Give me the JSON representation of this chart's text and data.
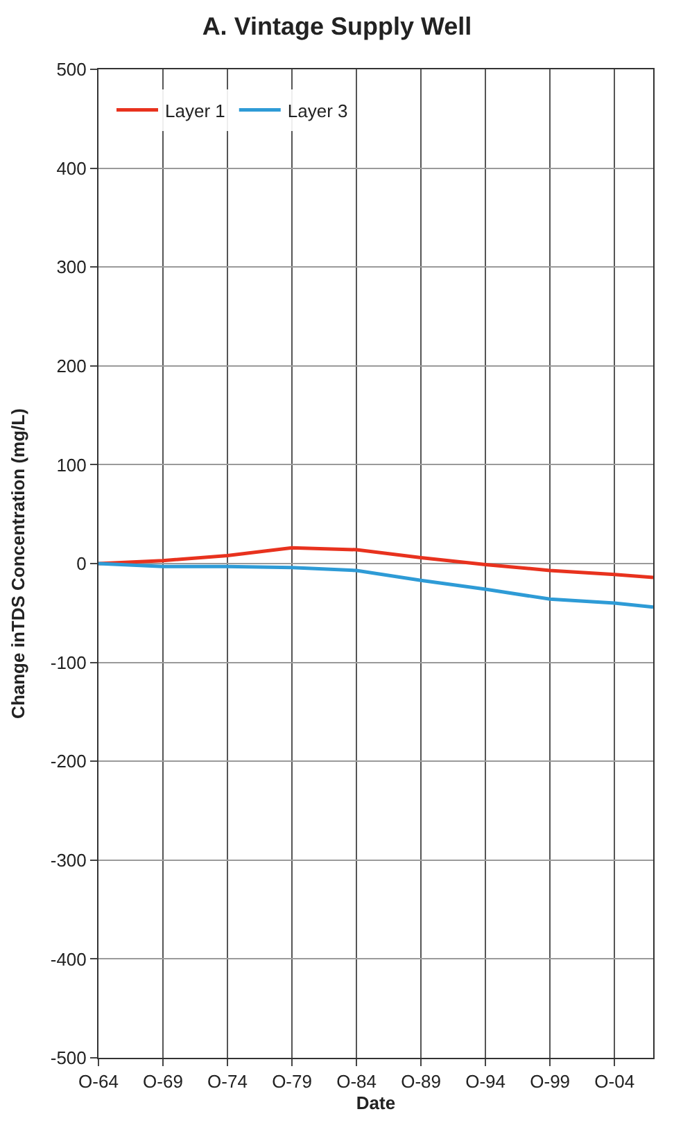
{
  "chart_data": {
    "type": "line",
    "title": "A. Vintage Supply Well",
    "xlabel": "Date",
    "ylabel": "Change inTDS Concentration (mg/L)",
    "x": [
      "1964-10",
      "1969-10",
      "1974-10",
      "1979-10",
      "1984-10",
      "1989-10",
      "1994-10",
      "1999-10",
      "2004-10",
      "2007-10"
    ],
    "series": [
      {
        "name": "Layer 1",
        "color": "#e8321e",
        "values": [
          0,
          3,
          8,
          16,
          14,
          6,
          -1,
          -7,
          -11,
          -14
        ]
      },
      {
        "name": "Layer 3",
        "color": "#2e9bd6",
        "values": [
          0,
          -3,
          -3,
          -4,
          -7,
          -17,
          -26,
          -36,
          -40,
          -44
        ]
      }
    ],
    "xlim": [
      "1964-10",
      "2007-10"
    ],
    "xticks": [
      {
        "value": "1964-10",
        "label": "O-64"
      },
      {
        "value": "1969-10",
        "label": "O-69"
      },
      {
        "value": "1974-10",
        "label": "O-74"
      },
      {
        "value": "1979-10",
        "label": "O-79"
      },
      {
        "value": "1984-10",
        "label": "O-84"
      },
      {
        "value": "1989-10",
        "label": "O-89"
      },
      {
        "value": "1994-10",
        "label": "O-94"
      },
      {
        "value": "1999-10",
        "label": "O-99"
      },
      {
        "value": "2004-10",
        "label": "O-04"
      }
    ],
    "ylim": [
      -500,
      500
    ],
    "yticks": [
      -500,
      -400,
      -300,
      -200,
      -100,
      0,
      100,
      200,
      300,
      400,
      500
    ],
    "grid": true,
    "legend": "top left",
    "marker": "none",
    "line_style": "solid"
  }
}
